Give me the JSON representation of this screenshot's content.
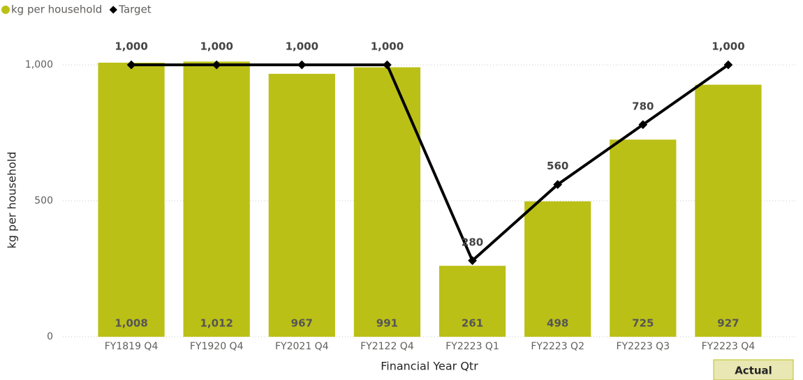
{
  "chart_data": {
    "type": "bar",
    "x_label": "Financial Year Qtr",
    "y_label": "kg per household",
    "categories": [
      "FY1819 Q4",
      "FY1920 Q4",
      "FY2021 Q4",
      "FY2122 Q4",
      "FY2223 Q1",
      "FY2223 Q2",
      "FY2223 Q3",
      "FY2223 Q4"
    ],
    "series": [
      {
        "name": "kg per household",
        "color": "#bbc016",
        "values": [
          1008,
          1012,
          967,
          991,
          261,
          498,
          725,
          927
        ],
        "value_labels": [
          "1,008",
          "1,012",
          "967",
          "991",
          "261",
          "498",
          "725",
          "927"
        ]
      },
      {
        "name": "Target",
        "type": "line",
        "color": "#000000",
        "values": [
          1000,
          1000,
          1000,
          1000,
          280,
          560,
          780,
          1000
        ],
        "value_labels": [
          "1,000",
          "1,000",
          "1,000",
          "1,000",
          "280",
          "560",
          "780",
          "1,000"
        ]
      }
    ],
    "ylim": [
      0,
      1100
    ],
    "yticks": [
      0,
      500,
      {
        "value": 1000,
        "label": "1,000"
      }
    ],
    "grid": true,
    "legend": "top-left"
  },
  "controls": {
    "button": "Actual"
  }
}
